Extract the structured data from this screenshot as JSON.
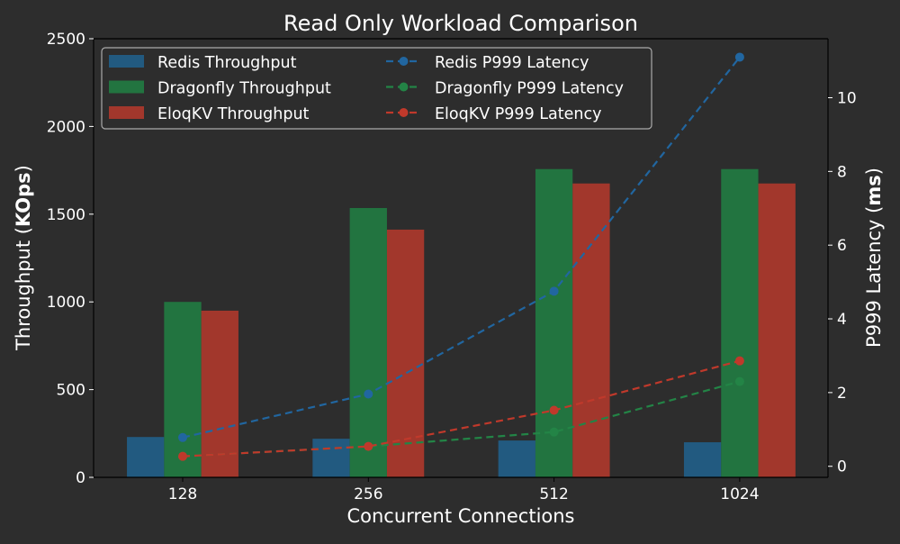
{
  "chart_data": {
    "type": "bar",
    "title": "Read Only Workload Comparison",
    "xlabel": "Concurrent Connections",
    "ylabel": "Throughput (KOps)",
    "ylabel_parts": [
      "Throughput (",
      "KOps",
      ")"
    ],
    "y2label": "P999 Latency (ms)",
    "y2label_parts": [
      "P999 Latency (",
      "ms",
      ")"
    ],
    "categories": [
      "128",
      "256",
      "512",
      "1024"
    ],
    "ylim": [
      0,
      2500
    ],
    "yticks": [
      0,
      500,
      1000,
      1500,
      2000,
      2500
    ],
    "y2lim": [
      -0.3,
      11.6
    ],
    "y2ticks": [
      0,
      2,
      4,
      6,
      8,
      10
    ],
    "grid": false,
    "legend_position": "upper left",
    "bar_series": [
      {
        "name": "Redis Throughput",
        "color": "#225a80",
        "values": [
          230,
          220,
          210,
          200
        ]
      },
      {
        "name": "Dragonfly Throughput",
        "color": "#227440",
        "values": [
          1000,
          1535,
          1757,
          1757
        ]
      },
      {
        "name": "EloqKV Throughput",
        "color": "#a2372c",
        "values": [
          950,
          1412,
          1675,
          1675
        ]
      }
    ],
    "line_series": [
      {
        "name": "Redis P999 Latency",
        "color": "#2166a0",
        "values": [
          0.78,
          1.96,
          4.75,
          11.1
        ]
      },
      {
        "name": "Dragonfly P999 Latency",
        "color": "#238446",
        "values": [
          0.27,
          0.54,
          0.93,
          2.3
        ]
      },
      {
        "name": "EloqKV P999 Latency",
        "color": "#c0392b",
        "values": [
          0.27,
          0.54,
          1.52,
          2.86
        ]
      }
    ]
  }
}
